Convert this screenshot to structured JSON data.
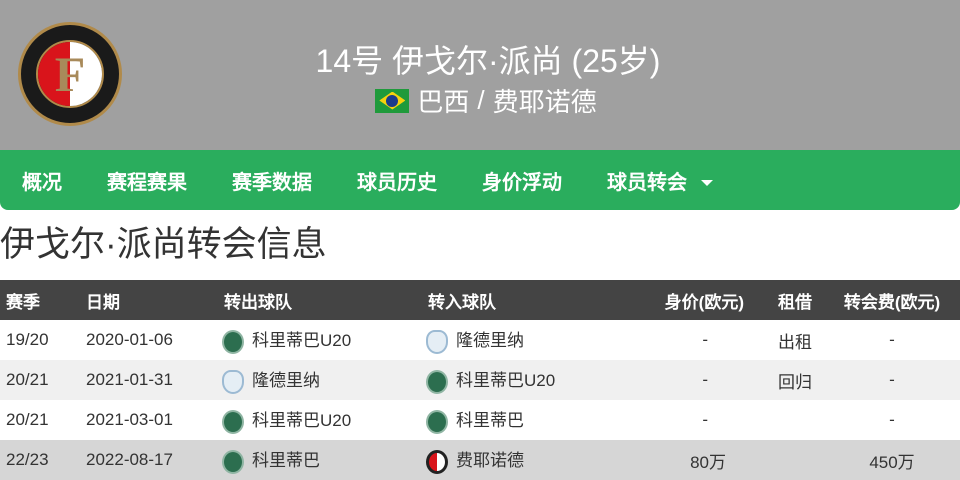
{
  "header": {
    "title": "14号 伊戈尔·派尚 (25岁)",
    "country": "巴西",
    "club": "费耶诺德",
    "separator": "/",
    "logo_text": "FEYENOORD ROTTERDAM"
  },
  "nav": {
    "items": [
      "概况",
      "赛程赛果",
      "赛季数据",
      "球员历史",
      "身价浮动",
      "球员转会"
    ]
  },
  "page_title": "伊戈尔·派尚转会信息",
  "table": {
    "headers": [
      "赛季",
      "日期",
      "转出球队",
      "转入球队",
      "身价(欧元)",
      "租借",
      "转会费(欧元)"
    ],
    "rows": [
      {
        "season": "19/20",
        "date": "2020-01-06",
        "from": "科里蒂巴U20",
        "from_badge": "coritiba",
        "to": "隆德里纳",
        "to_badge": "londrina",
        "value": "-",
        "loan": "出租",
        "fee": "-"
      },
      {
        "season": "20/21",
        "date": "2021-01-31",
        "from": "隆德里纳",
        "from_badge": "londrina",
        "to": "科里蒂巴U20",
        "to_badge": "coritiba",
        "value": "-",
        "loan": "回归",
        "fee": "-"
      },
      {
        "season": "20/21",
        "date": "2021-03-01",
        "from": "科里蒂巴U20",
        "from_badge": "coritiba",
        "to": "科里蒂巴",
        "to_badge": "coritiba",
        "value": "-",
        "loan": "",
        "fee": "-"
      },
      {
        "season": "22/23",
        "date": "2022-08-17",
        "from": "科里蒂巴",
        "from_badge": "coritiba",
        "to": "费耶诺德",
        "to_badge": "feyenoord",
        "value": "80万",
        "loan": "",
        "fee": "450万"
      }
    ]
  },
  "colors": {
    "header_bg": "#a0a0a0",
    "nav_bg": "#2aad5d",
    "table_header_bg": "#444444",
    "highlight_row": "#d6d6d6"
  }
}
